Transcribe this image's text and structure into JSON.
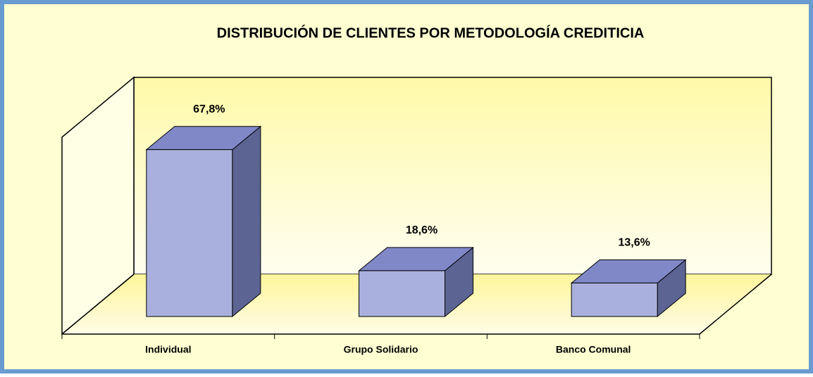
{
  "chart_data": {
    "type": "bar3d",
    "title": "DISTRIBUCIÓN DE CLIENTES POR METODOLOGÍA CREDITICIA",
    "categories": [
      "Individual",
      "Grupo Solidario",
      "Banco Comunal"
    ],
    "values": [
      67.8,
      18.6,
      13.6
    ],
    "value_labels": [
      "67,8%",
      "18,6%",
      "13,6%"
    ],
    "color": "#aab0dd",
    "ylim": [
      0,
      80
    ]
  }
}
